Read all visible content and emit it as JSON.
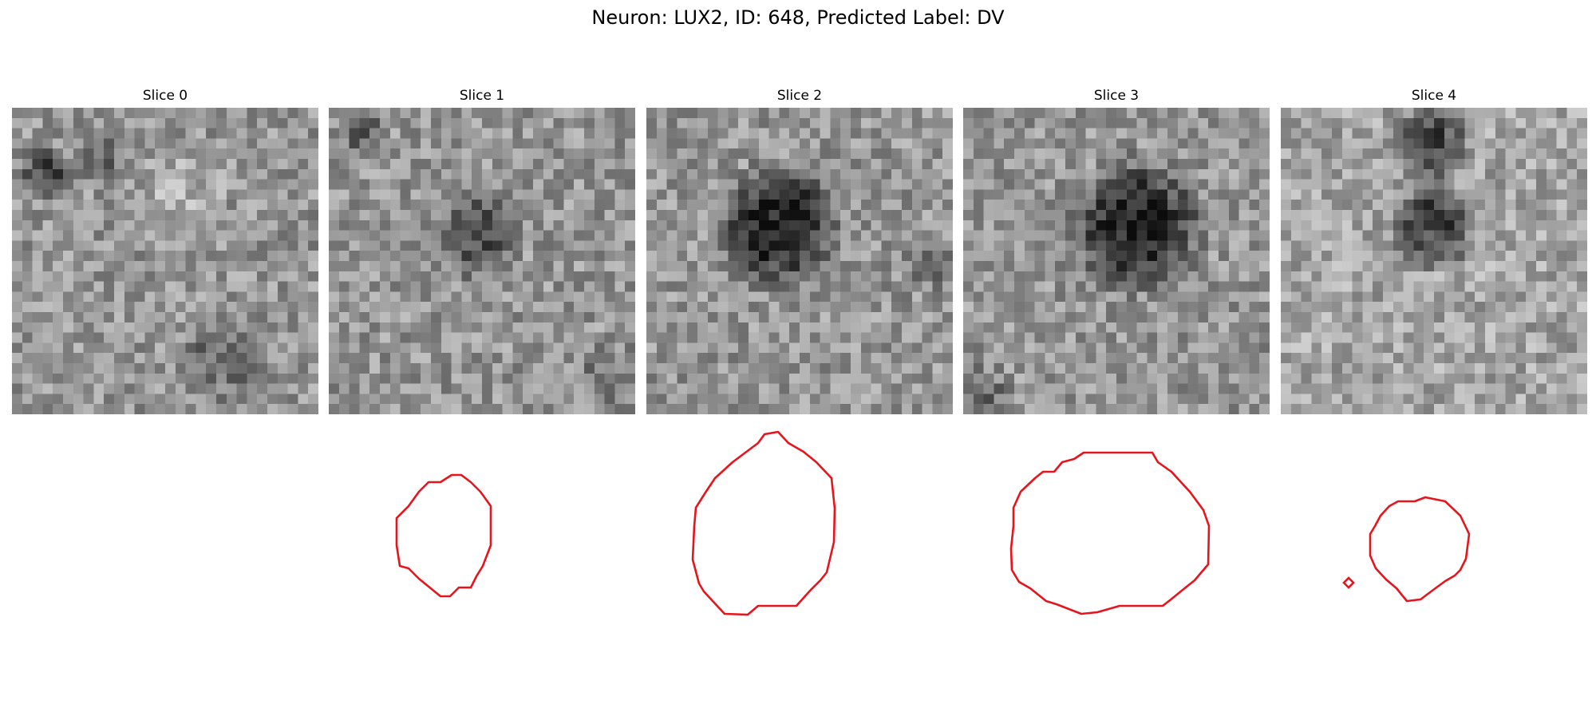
{
  "figure": {
    "title": "Neuron: LUX2, ID: 648, Predicted Label: DV"
  },
  "colors": {
    "contour": "#e8141c",
    "colormap": "gray"
  },
  "slices": [
    {
      "title": "Slice 0",
      "has_contour": false
    },
    {
      "title": "Slice 1",
      "has_contour": true
    },
    {
      "title": "Slice 2",
      "has_contour": true
    },
    {
      "title": "Slice 3",
      "has_contour": true
    },
    {
      "title": "Slice 4",
      "has_contour": true,
      "has_secondary_marker": true
    }
  ]
}
